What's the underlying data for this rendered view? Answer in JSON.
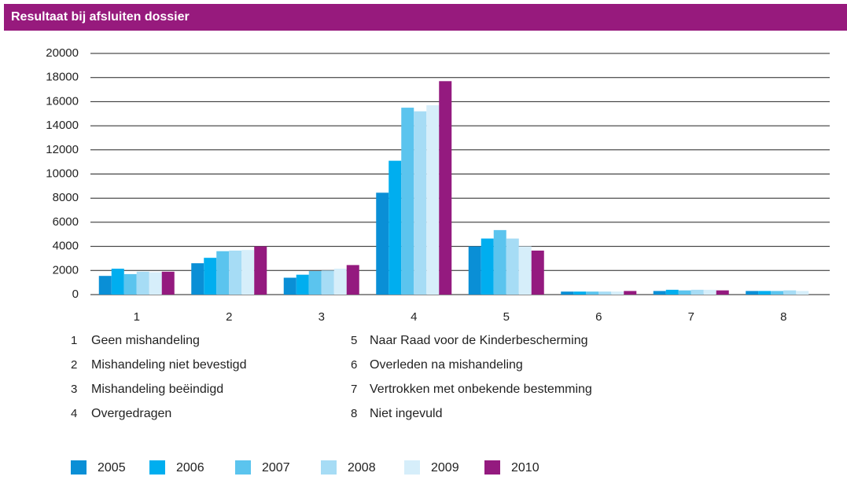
{
  "chart_data": {
    "type": "bar",
    "title": "Resultaat bij afsluiten dossier",
    "categories": [
      "1",
      "2",
      "3",
      "4",
      "5",
      "6",
      "7",
      "8"
    ],
    "category_labels": [
      "Geen mishandeling",
      "Mishandeling niet bevestigd",
      "Mishandeling beëindigd",
      "Overgedragen",
      "Naar Raad voor de Kinderbescherming",
      "Overleden na mishandeling",
      "Vertrokken met onbekende bestemming",
      "Niet ingevuld"
    ],
    "series": [
      {
        "name": "2005",
        "color": "#0a8fd6",
        "values": [
          1550,
          2600,
          1400,
          8450,
          4000,
          250,
          300,
          300
        ]
      },
      {
        "name": "2006",
        "color": "#00aeef",
        "values": [
          2150,
          3050,
          1650,
          11100,
          4650,
          250,
          400,
          300
        ]
      },
      {
        "name": "2007",
        "color": "#5bc4ee",
        "values": [
          1700,
          3600,
          1950,
          15500,
          5350,
          250,
          350,
          300
        ]
      },
      {
        "name": "2008",
        "color": "#a6dcf5",
        "values": [
          1900,
          3650,
          2000,
          15200,
          4650,
          250,
          400,
          350
        ]
      },
      {
        "name": "2009",
        "color": "#d6eefa",
        "values": [
          1850,
          3700,
          2150,
          15700,
          4000,
          250,
          400,
          300
        ]
      },
      {
        "name": "2010",
        "color": "#941a7f",
        "values": [
          1900,
          4000,
          2450,
          17700,
          3650,
          300,
          350,
          null
        ]
      }
    ],
    "ylim": [
      0,
      20000
    ],
    "yticks": [
      0,
      2000,
      4000,
      6000,
      8000,
      10000,
      12000,
      14000,
      16000,
      18000,
      20000
    ],
    "grid": true
  }
}
